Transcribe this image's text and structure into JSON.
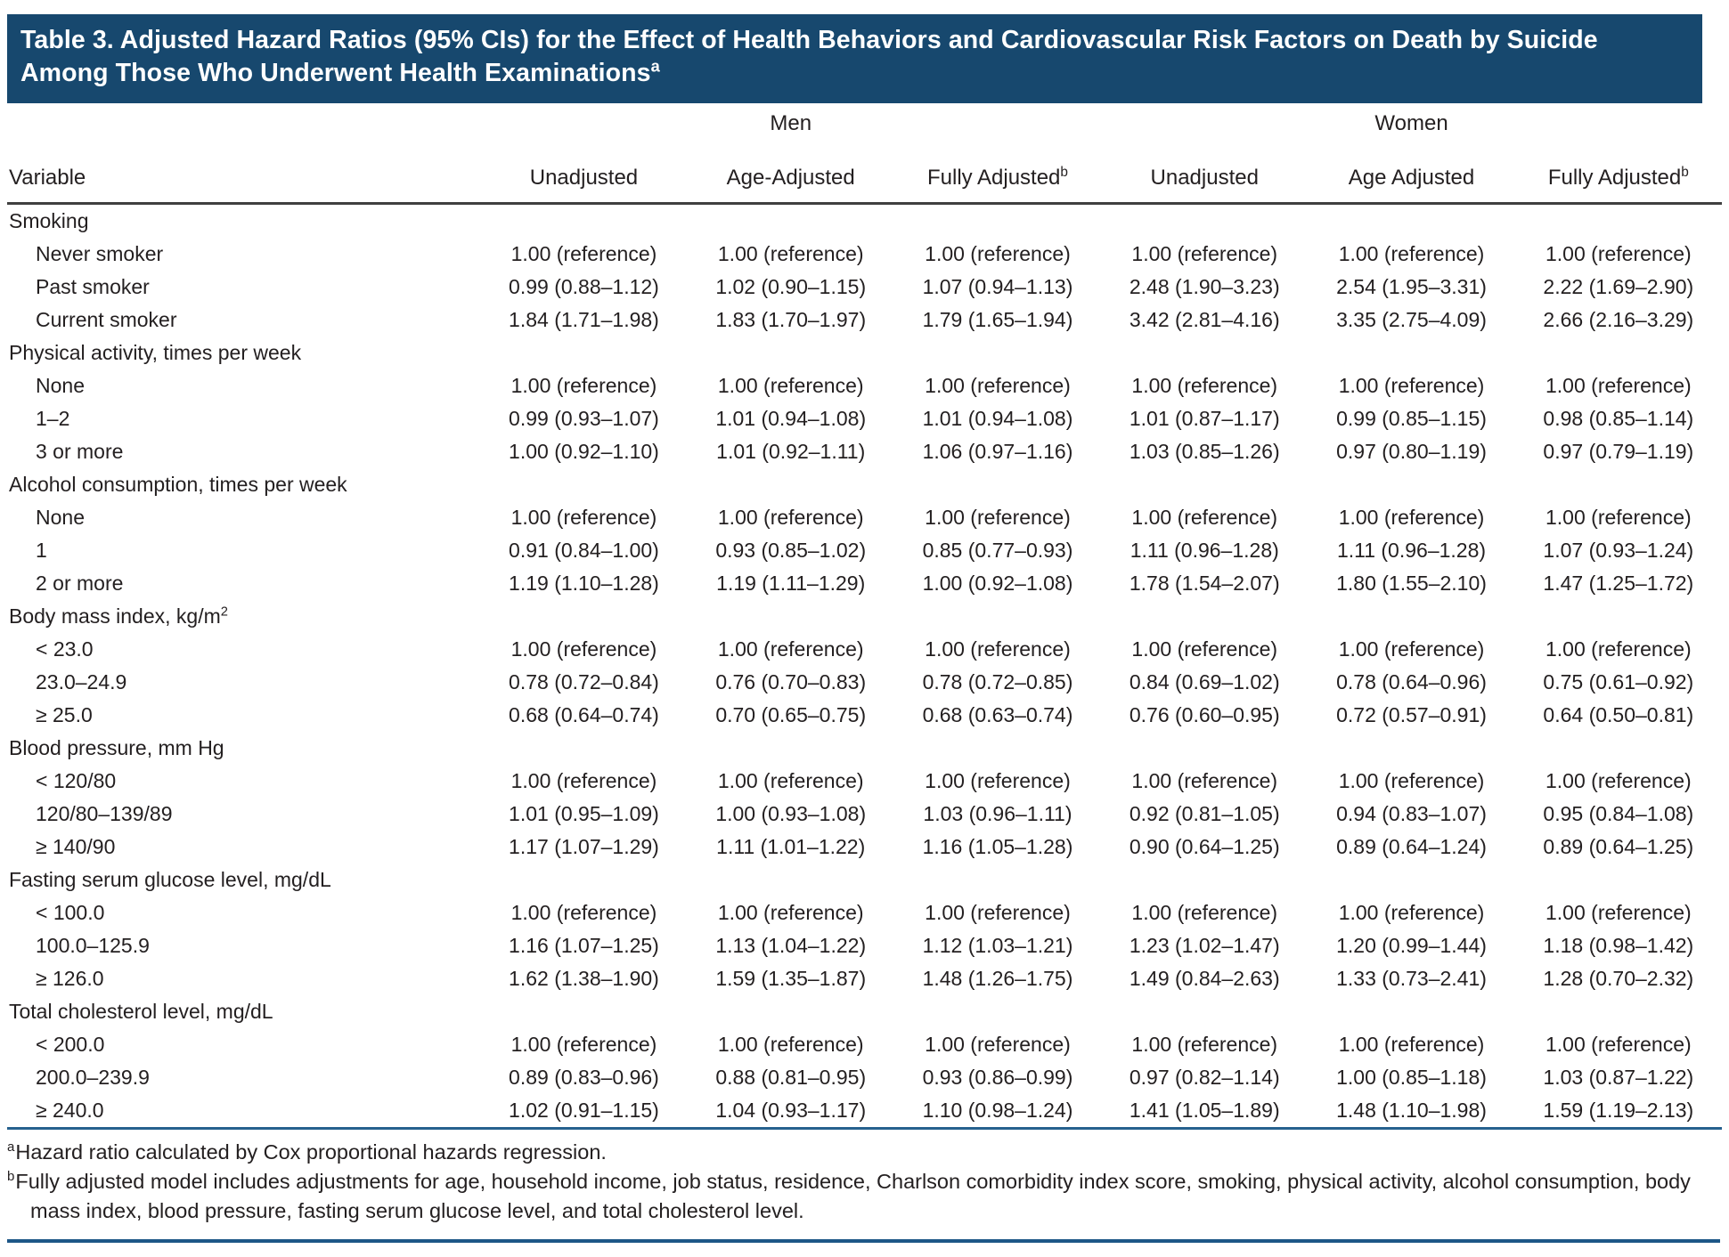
{
  "title": {
    "text": "Table 3. Adjusted Hazard Ratios (95% CIs) for the Effect of Health Behaviors and Cardiovascular Risk Factors on Death by Suicide Among Those Who Underwent Health Examinations",
    "sup": "a"
  },
  "groups": [
    {
      "label": "Men"
    },
    {
      "label": "Women"
    }
  ],
  "columns": {
    "variable": "Variable",
    "men": [
      "Unadjusted",
      "Age-Adjusted",
      "Fully Adjusted"
    ],
    "women": [
      "Unadjusted",
      "Age Adjusted",
      "Fully Adjusted"
    ],
    "fully_adjusted_sup": "b"
  },
  "table": {
    "sections": [
      {
        "label": "Smoking",
        "rows": [
          {
            "label": "Never smoker",
            "values": [
              "1.00 (reference)",
              "1.00 (reference)",
              "1.00 (reference)",
              "1.00 (reference)",
              "1.00 (reference)",
              "1.00 (reference)"
            ]
          },
          {
            "label": "Past smoker",
            "values": [
              "0.99 (0.88–1.12)",
              "1.02 (0.90–1.15)",
              "1.07 (0.94–1.13)",
              "2.48 (1.90–3.23)",
              "2.54 (1.95–3.31)",
              "2.22 (1.69–2.90)"
            ]
          },
          {
            "label": "Current smoker",
            "values": [
              "1.84 (1.71–1.98)",
              "1.83 (1.70–1.97)",
              "1.79 (1.65–1.94)",
              "3.42 (2.81–4.16)",
              "3.35 (2.75–4.09)",
              "2.66 (2.16–3.29)"
            ]
          }
        ]
      },
      {
        "label": "Physical activity, times per week",
        "rows": [
          {
            "label": "None",
            "values": [
              "1.00 (reference)",
              "1.00 (reference)",
              "1.00 (reference)",
              "1.00 (reference)",
              "1.00 (reference)",
              "1.00 (reference)"
            ]
          },
          {
            "label": "1–2",
            "values": [
              "0.99 (0.93–1.07)",
              "1.01 (0.94–1.08)",
              "1.01 (0.94–1.08)",
              "1.01 (0.87–1.17)",
              "0.99 (0.85–1.15)",
              "0.98 (0.85–1.14)"
            ]
          },
          {
            "label": "3 or more",
            "values": [
              "1.00 (0.92–1.10)",
              "1.01 (0.92–1.11)",
              "1.06 (0.97–1.16)",
              "1.03 (0.85–1.26)",
              "0.97 (0.80–1.19)",
              "0.97 (0.79–1.19)"
            ]
          }
        ]
      },
      {
        "label": "Alcohol consumption, times per week",
        "rows": [
          {
            "label": "None",
            "values": [
              "1.00 (reference)",
              "1.00 (reference)",
              "1.00 (reference)",
              "1.00 (reference)",
              "1.00 (reference)",
              "1.00 (reference)"
            ]
          },
          {
            "label": "1",
            "values": [
              "0.91 (0.84–1.00)",
              "0.93 (0.85–1.02)",
              "0.85 (0.77–0.93)",
              "1.11 (0.96–1.28)",
              "1.11 (0.96–1.28)",
              "1.07 (0.93–1.24)"
            ]
          },
          {
            "label": "2 or more",
            "values": [
              "1.19 (1.10–1.28)",
              "1.19 (1.11–1.29)",
              "1.00 (0.92–1.08)",
              "1.78 (1.54–2.07)",
              "1.80 (1.55–2.10)",
              "1.47 (1.25–1.72)"
            ]
          }
        ]
      },
      {
        "label": "Body mass index, kg/m",
        "label_sup": "2",
        "rows": [
          {
            "label": "< 23.0",
            "values": [
              "1.00 (reference)",
              "1.00 (reference)",
              "1.00 (reference)",
              "1.00 (reference)",
              "1.00 (reference)",
              "1.00 (reference)"
            ]
          },
          {
            "label": "23.0–24.9",
            "values": [
              "0.78 (0.72–0.84)",
              "0.76 (0.70–0.83)",
              "0.78 (0.72–0.85)",
              "0.84 (0.69–1.02)",
              "0.78 (0.64–0.96)",
              "0.75 (0.61–0.92)"
            ]
          },
          {
            "label": "≥ 25.0",
            "values": [
              "0.68 (0.64–0.74)",
              "0.70 (0.65–0.75)",
              "0.68 (0.63–0.74)",
              "0.76 (0.60–0.95)",
              "0.72 (0.57–0.91)",
              "0.64 (0.50–0.81)"
            ]
          }
        ]
      },
      {
        "label": "Blood pressure, mm Hg",
        "rows": [
          {
            "label": "< 120/80",
            "values": [
              "1.00 (reference)",
              "1.00 (reference)",
              "1.00 (reference)",
              "1.00 (reference)",
              "1.00 (reference)",
              "1.00 (reference)"
            ]
          },
          {
            "label": "120/80–139/89",
            "values": [
              "1.01 (0.95–1.09)",
              "1.00 (0.93–1.08)",
              "1.03 (0.96–1.11)",
              "0.92 (0.81–1.05)",
              "0.94 (0.83–1.07)",
              "0.95 (0.84–1.08)"
            ]
          },
          {
            "label": "≥ 140/90",
            "values": [
              "1.17 (1.07–1.29)",
              "1.11 (1.01–1.22)",
              "1.16 (1.05–1.28)",
              "0.90 (0.64–1.25)",
              "0.89 (0.64–1.24)",
              "0.89 (0.64–1.25)"
            ]
          }
        ]
      },
      {
        "label": "Fasting serum glucose level, mg/dL",
        "rows": [
          {
            "label": "< 100.0",
            "values": [
              "1.00 (reference)",
              "1.00 (reference)",
              "1.00 (reference)",
              "1.00 (reference)",
              "1.00 (reference)",
              "1.00 (reference)"
            ]
          },
          {
            "label": "100.0–125.9",
            "values": [
              "1.16 (1.07–1.25)",
              "1.13 (1.04–1.22)",
              "1.12 (1.03–1.21)",
              "1.23 (1.02–1.47)",
              "1.20 (0.99–1.44)",
              "1.18 (0.98–1.42)"
            ]
          },
          {
            "label": "≥ 126.0",
            "values": [
              "1.62 (1.38–1.90)",
              "1.59 (1.35–1.87)",
              "1.48 (1.26–1.75)",
              "1.49 (0.84–2.63)",
              "1.33 (0.73–2.41)",
              "1.28 (0.70–2.32)"
            ]
          }
        ]
      },
      {
        "label": "Total cholesterol level, mg/dL",
        "rows": [
          {
            "label": "< 200.0",
            "values": [
              "1.00 (reference)",
              "1.00 (reference)",
              "1.00 (reference)",
              "1.00 (reference)",
              "1.00 (reference)",
              "1.00 (reference)"
            ]
          },
          {
            "label": "200.0–239.9",
            "values": [
              "0.89 (0.83–0.96)",
              "0.88 (0.81–0.95)",
              "0.93 (0.86–0.99)",
              "0.97 (0.82–1.14)",
              "1.00 (0.85–1.18)",
              "1.03 (0.87–1.22)"
            ]
          },
          {
            "label": "≥ 240.0",
            "values": [
              "1.02 (0.91–1.15)",
              "1.04 (0.93–1.17)",
              "1.10 (0.98–1.24)",
              "1.41 (1.05–1.89)",
              "1.48 (1.10–1.98)",
              "1.59 (1.19–2.13)"
            ]
          }
        ]
      }
    ]
  },
  "footnotes": [
    {
      "marker": "a",
      "text": "Hazard ratio calculated by Cox proportional hazards regression."
    },
    {
      "marker": "b",
      "text": "Fully adjusted model includes adjustments for age, household income, job status, residence, Charlson comorbidity index score, smoking, physical activity, alcohol consumption, body mass index, blood pressure, fasting serum glucose level, and total cholesterol level."
    }
  ],
  "colors": {
    "title_band": "#17486e",
    "title_text": "#ffffff",
    "body_text": "#231f20",
    "header_rule": "#404040",
    "table_bottom_rule": "#26618e",
    "page_bottom_rule": "#1d5787"
  }
}
